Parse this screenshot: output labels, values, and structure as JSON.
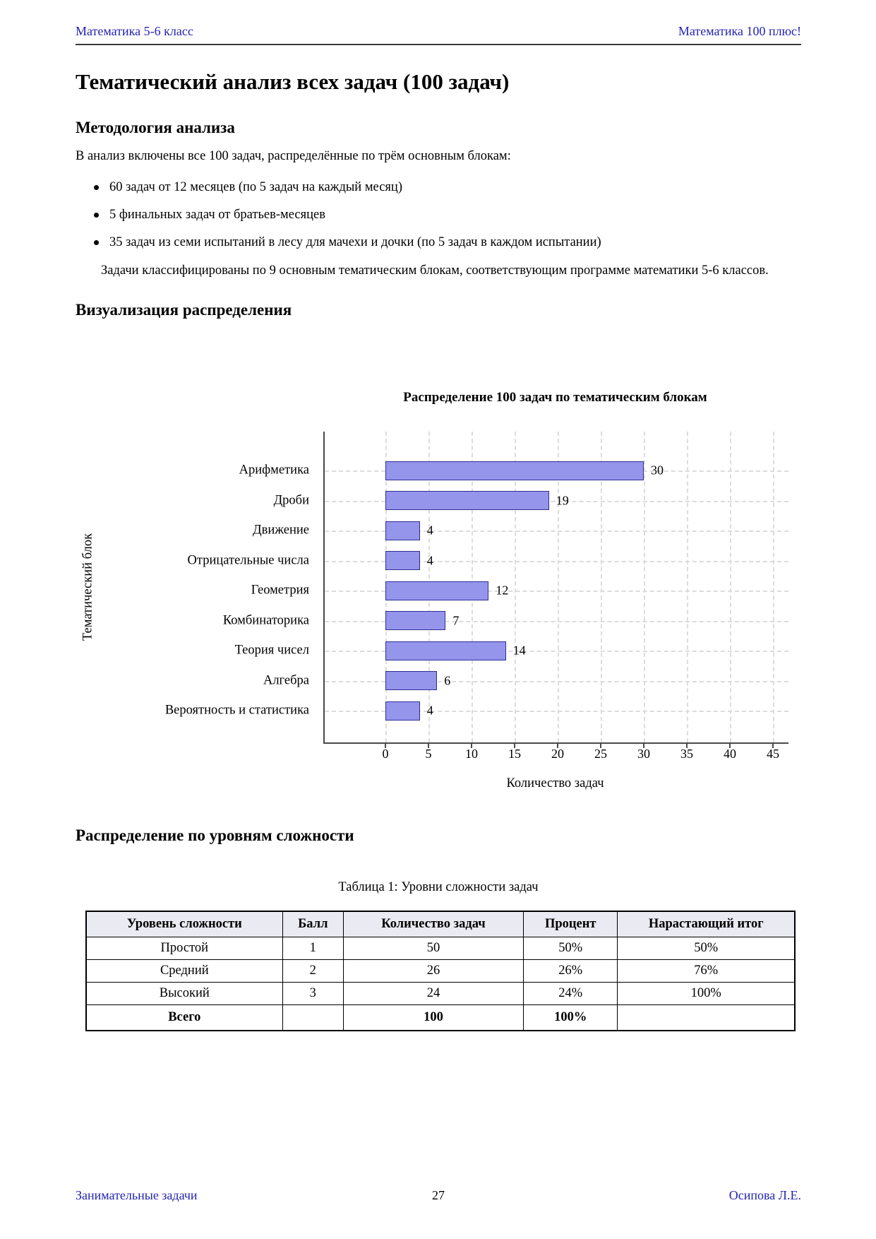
{
  "header": {
    "left": "Математика 5-6 класс",
    "right": "Математика 100 плюс!"
  },
  "title": "Тематический анализ всех задач (100 задач)",
  "methodology": {
    "heading": "Методология анализа",
    "intro": "В анализ включены все 100 задач, распределённые по трём основным блокам:",
    "bullets": [
      "60 задач от 12 месяцев (по 5 задач на каждый месяц)",
      "5 финальных задач от братьев-месяцев",
      "35 задач из семи испытаний в лесу для мачехи и дочки (по 5 задач в каждом испытании)"
    ],
    "outro": "Задачи классифицированы по 9 основным тематическим блокам, соответствующим программе математики 5-6 классов."
  },
  "visualization": {
    "heading": "Визуализация распределения"
  },
  "chart_data": {
    "type": "bar",
    "orientation": "horizontal",
    "title": "Распределение 100 задач по тематическим блокам",
    "categories": [
      "Арифметика",
      "Дроби",
      "Движение",
      "Отрицательные числа",
      "Геометрия",
      "Комбинаторика",
      "Теория чисел",
      "Алгебра",
      "Вероятность и статистика"
    ],
    "values": [
      30,
      19,
      4,
      4,
      12,
      7,
      14,
      6,
      4
    ],
    "xlabel": "Количество задач",
    "ylabel": "Тематический блок",
    "xticks": [
      0,
      5,
      10,
      15,
      20,
      25,
      30,
      35,
      40,
      45
    ],
    "xlim": [
      0,
      45
    ],
    "grid": "dashed",
    "bar_fill": "#9595ec",
    "bar_border": "#2e2e96"
  },
  "difficulty": {
    "heading": "Распределение по уровням сложности",
    "caption": "Таблица 1: Уровни сложности задач",
    "columns": [
      "Уровень сложности",
      "Балл",
      "Количество задач",
      "Процент",
      "Нарастающий итог"
    ],
    "rows": [
      [
        "Простой",
        "1",
        "50",
        "50%",
        "50%"
      ],
      [
        "Средний",
        "2",
        "26",
        "26%",
        "76%"
      ],
      [
        "Высокий",
        "3",
        "24",
        "24%",
        "100%"
      ],
      [
        "Всего",
        "",
        "100",
        "100%",
        ""
      ]
    ]
  },
  "footer": {
    "left": "Занимательные задачи",
    "page_number": "27",
    "right": "Осипова Л.Е."
  },
  "colors": {
    "link_blue": "#2323b4",
    "bar_fill": "#9595ec",
    "bar_border": "#2e2e96",
    "grid": "#dcdcdc",
    "table_header_bg": "#eaeaf2"
  }
}
